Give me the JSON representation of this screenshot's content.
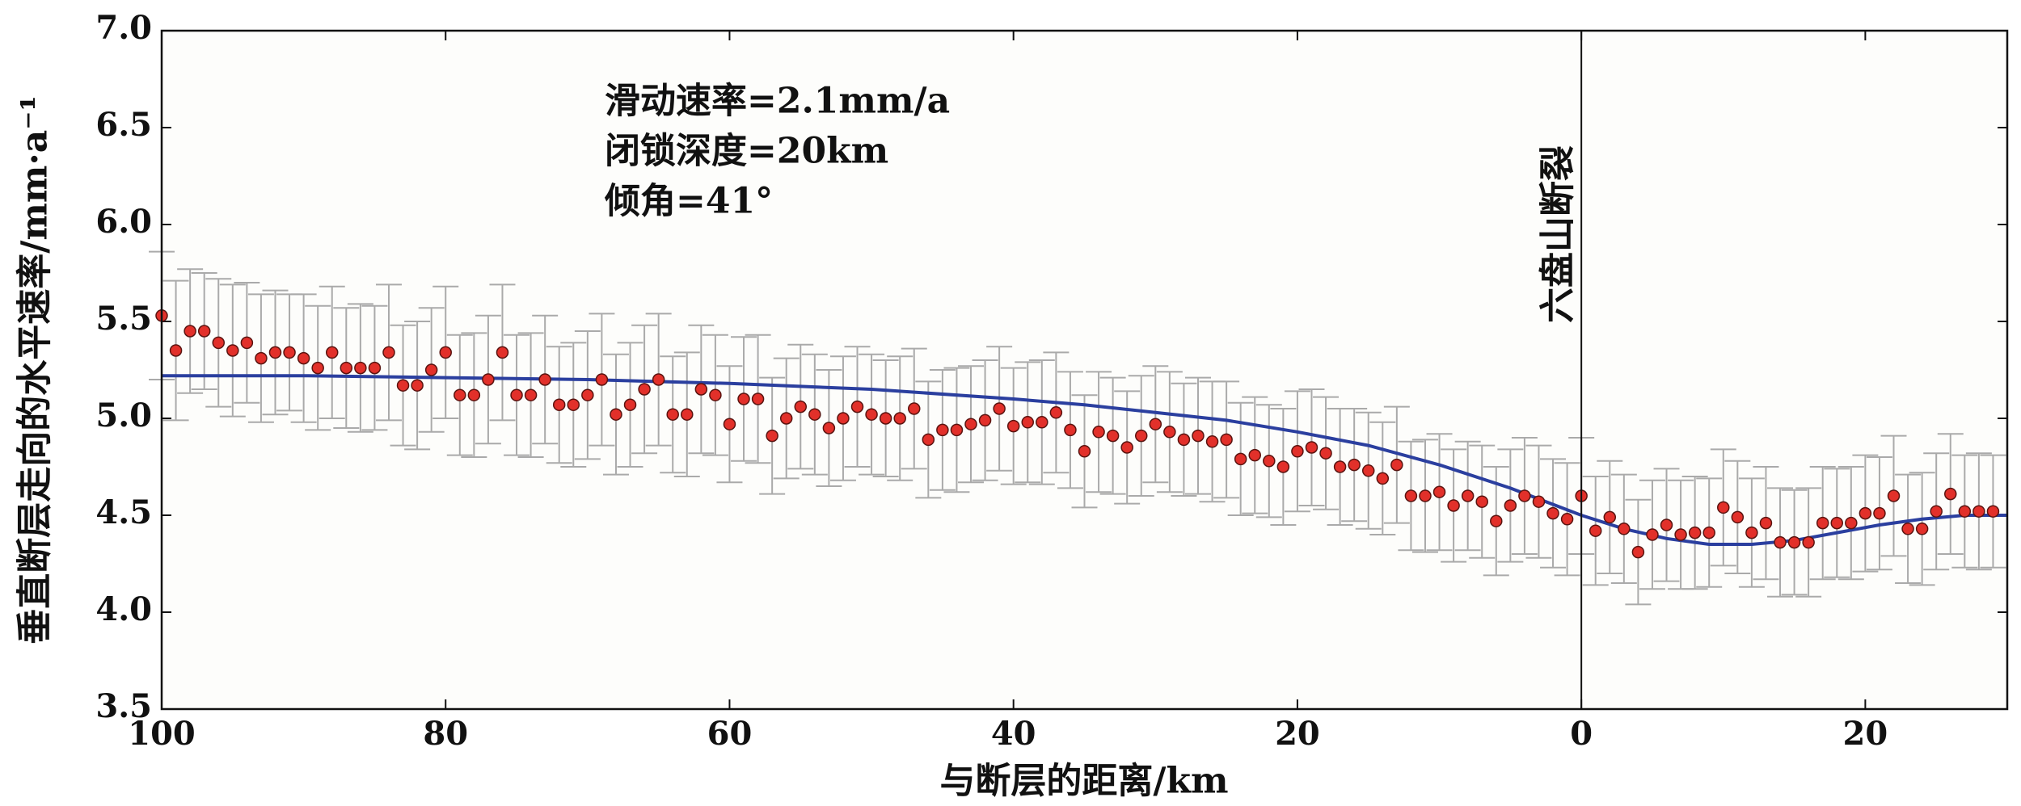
{
  "chart_data": {
    "type": "errorbar-scatter",
    "xlabel": "与断层的距离/km",
    "ylabel": "垂直断层走向的水平速率/mm·a⁻¹",
    "annotations": [
      "滑动速率=2.1mm/a",
      "闭锁深度=20km",
      "倾角=41°"
    ],
    "fault": {
      "label": "六盘山断裂",
      "x": 0
    },
    "xlim": [
      -100,
      30
    ],
    "ylim": [
      3.5,
      7.0
    ],
    "xticks": [
      {
        "value": -100,
        "label": "100"
      },
      {
        "value": -80,
        "label": "80"
      },
      {
        "value": -60,
        "label": "60"
      },
      {
        "value": -40,
        "label": "40"
      },
      {
        "value": -20,
        "label": "20"
      },
      0,
      20
    ],
    "yticks": [
      3.5,
      {
        "value": 4,
        "label": "4.0"
      },
      4.5,
      {
        "value": 5,
        "label": "5.0"
      },
      5.5,
      {
        "value": 6,
        "label": "6.0"
      },
      6.5,
      {
        "value": 7,
        "label": "7.0"
      }
    ],
    "points": {
      "color": "#e2302a",
      "errorbar_color": "#aaaaaa",
      "x": [
        -100,
        -99,
        -98,
        -97,
        -96,
        -95,
        -94,
        -93,
        -92,
        -91,
        -90,
        -89,
        -88,
        -87,
        -86,
        -85,
        -84,
        -83,
        -82,
        -81,
        -80,
        -79,
        -78,
        -77,
        -76,
        -75,
        -74,
        -73,
        -72,
        -71,
        -70,
        -69,
        -68,
        -67,
        -66,
        -65,
        -64,
        -63,
        -62,
        -61,
        -60,
        -59,
        -58,
        -57,
        -56,
        -55,
        -54,
        -53,
        -52,
        -51,
        -50,
        -49,
        -48,
        -47,
        -46,
        -45,
        -44,
        -43,
        -42,
        -41,
        -40,
        -39,
        -38,
        -37,
        -36,
        -35,
        -34,
        -33,
        -32,
        -31,
        -30,
        -29,
        -28,
        -27,
        -26,
        -25,
        -24,
        -23,
        -22,
        -21,
        -20,
        -19,
        -18,
        -17,
        -16,
        -15,
        -14,
        -13,
        -12,
        -11,
        -10,
        -9,
        -8,
        -7,
        -6,
        -5,
        -4,
        -3,
        -2,
        -1,
        0,
        1,
        2,
        3,
        4,
        5,
        6,
        7,
        8,
        9,
        10,
        11,
        12,
        13,
        14,
        15,
        16,
        17,
        18,
        19,
        20,
        21,
        22,
        23,
        24,
        25,
        26,
        27,
        28,
        29
      ],
      "values": [
        5.53,
        5.35,
        5.45,
        5.45,
        5.39,
        5.35,
        5.39,
        5.31,
        5.34,
        5.34,
        5.31,
        5.26,
        5.34,
        5.26,
        5.26,
        5.26,
        5.34,
        5.17,
        5.17,
        5.25,
        5.34,
        5.12,
        5.12,
        5.2,
        5.34,
        5.12,
        5.12,
        5.2,
        5.07,
        5.07,
        5.12,
        5.2,
        5.02,
        5.07,
        5.15,
        5.2,
        5.02,
        5.02,
        5.15,
        5.12,
        4.97,
        5.1,
        5.1,
        4.91,
        5.0,
        5.06,
        5.02,
        4.95,
        5.0,
        5.06,
        5.02,
        5.0,
        5.0,
        5.05,
        4.89,
        4.94,
        4.94,
        4.97,
        4.99,
        5.05,
        4.96,
        4.98,
        4.98,
        5.03,
        4.94,
        4.83,
        4.93,
        4.91,
        4.85,
        4.91,
        4.97,
        4.93,
        4.89,
        4.91,
        4.88,
        4.89,
        4.79,
        4.81,
        4.78,
        4.75,
        4.83,
        4.85,
        4.82,
        4.75,
        4.76,
        4.73,
        4.69,
        4.76,
        4.6,
        4.6,
        4.62,
        4.55,
        4.6,
        4.57,
        4.47,
        4.55,
        4.6,
        4.57,
        4.51,
        4.48,
        4.6,
        4.42,
        4.49,
        4.43,
        4.31,
        4.4,
        4.45,
        4.4,
        4.41,
        4.41,
        4.54,
        4.49,
        4.41,
        4.46,
        4.36,
        4.36,
        4.36,
        4.46,
        4.46,
        4.46,
        4.51,
        4.51,
        4.6,
        4.43,
        4.43,
        4.52,
        4.61,
        4.52,
        4.52,
        4.52
      ],
      "errors": [
        0.33,
        0.36,
        0.32,
        0.3,
        0.33,
        0.34,
        0.31,
        0.33,
        0.32,
        0.3,
        0.33,
        0.32,
        0.34,
        0.31,
        0.33,
        0.32,
        0.35,
        0.31,
        0.33,
        0.32,
        0.34,
        0.31,
        0.32,
        0.33,
        0.35,
        0.31,
        0.32,
        0.33,
        0.3,
        0.32,
        0.33,
        0.34,
        0.31,
        0.32,
        0.33,
        0.34,
        0.3,
        0.32,
        0.33,
        0.31,
        0.3,
        0.32,
        0.33,
        0.3,
        0.31,
        0.32,
        0.31,
        0.3,
        0.32,
        0.31,
        0.31,
        0.3,
        0.32,
        0.31,
        0.3,
        0.31,
        0.32,
        0.3,
        0.31,
        0.32,
        0.3,
        0.31,
        0.32,
        0.31,
        0.3,
        0.29,
        0.31,
        0.3,
        0.29,
        0.31,
        0.3,
        0.31,
        0.29,
        0.3,
        0.31,
        0.3,
        0.29,
        0.3,
        0.29,
        0.3,
        0.31,
        0.3,
        0.29,
        0.3,
        0.29,
        0.3,
        0.29,
        0.3,
        0.28,
        0.29,
        0.3,
        0.29,
        0.28,
        0.29,
        0.28,
        0.29,
        0.3,
        0.29,
        0.28,
        0.29,
        0.3,
        0.28,
        0.29,
        0.28,
        0.27,
        0.28,
        0.29,
        0.28,
        0.29,
        0.28,
        0.3,
        0.29,
        0.28,
        0.29,
        0.28,
        0.27,
        0.28,
        0.29,
        0.28,
        0.29,
        0.3,
        0.29,
        0.31,
        0.28,
        0.29,
        0.3,
        0.31,
        0.29,
        0.3,
        0.29
      ]
    },
    "curve": {
      "color": "#2b3f9f",
      "x": [
        -100,
        -90,
        -80,
        -70,
        -60,
        -50,
        -40,
        -35,
        -30,
        -25,
        -20,
        -15,
        -10,
        -5,
        0,
        3,
        6,
        9,
        12,
        15,
        18,
        21,
        24,
        27,
        30
      ],
      "values": [
        5.22,
        5.22,
        5.21,
        5.2,
        5.18,
        5.15,
        5.1,
        5.07,
        5.03,
        4.99,
        4.93,
        4.86,
        4.76,
        4.64,
        4.5,
        4.43,
        4.38,
        4.35,
        4.35,
        4.37,
        4.41,
        4.45,
        4.48,
        4.5,
        4.5
      ]
    }
  }
}
